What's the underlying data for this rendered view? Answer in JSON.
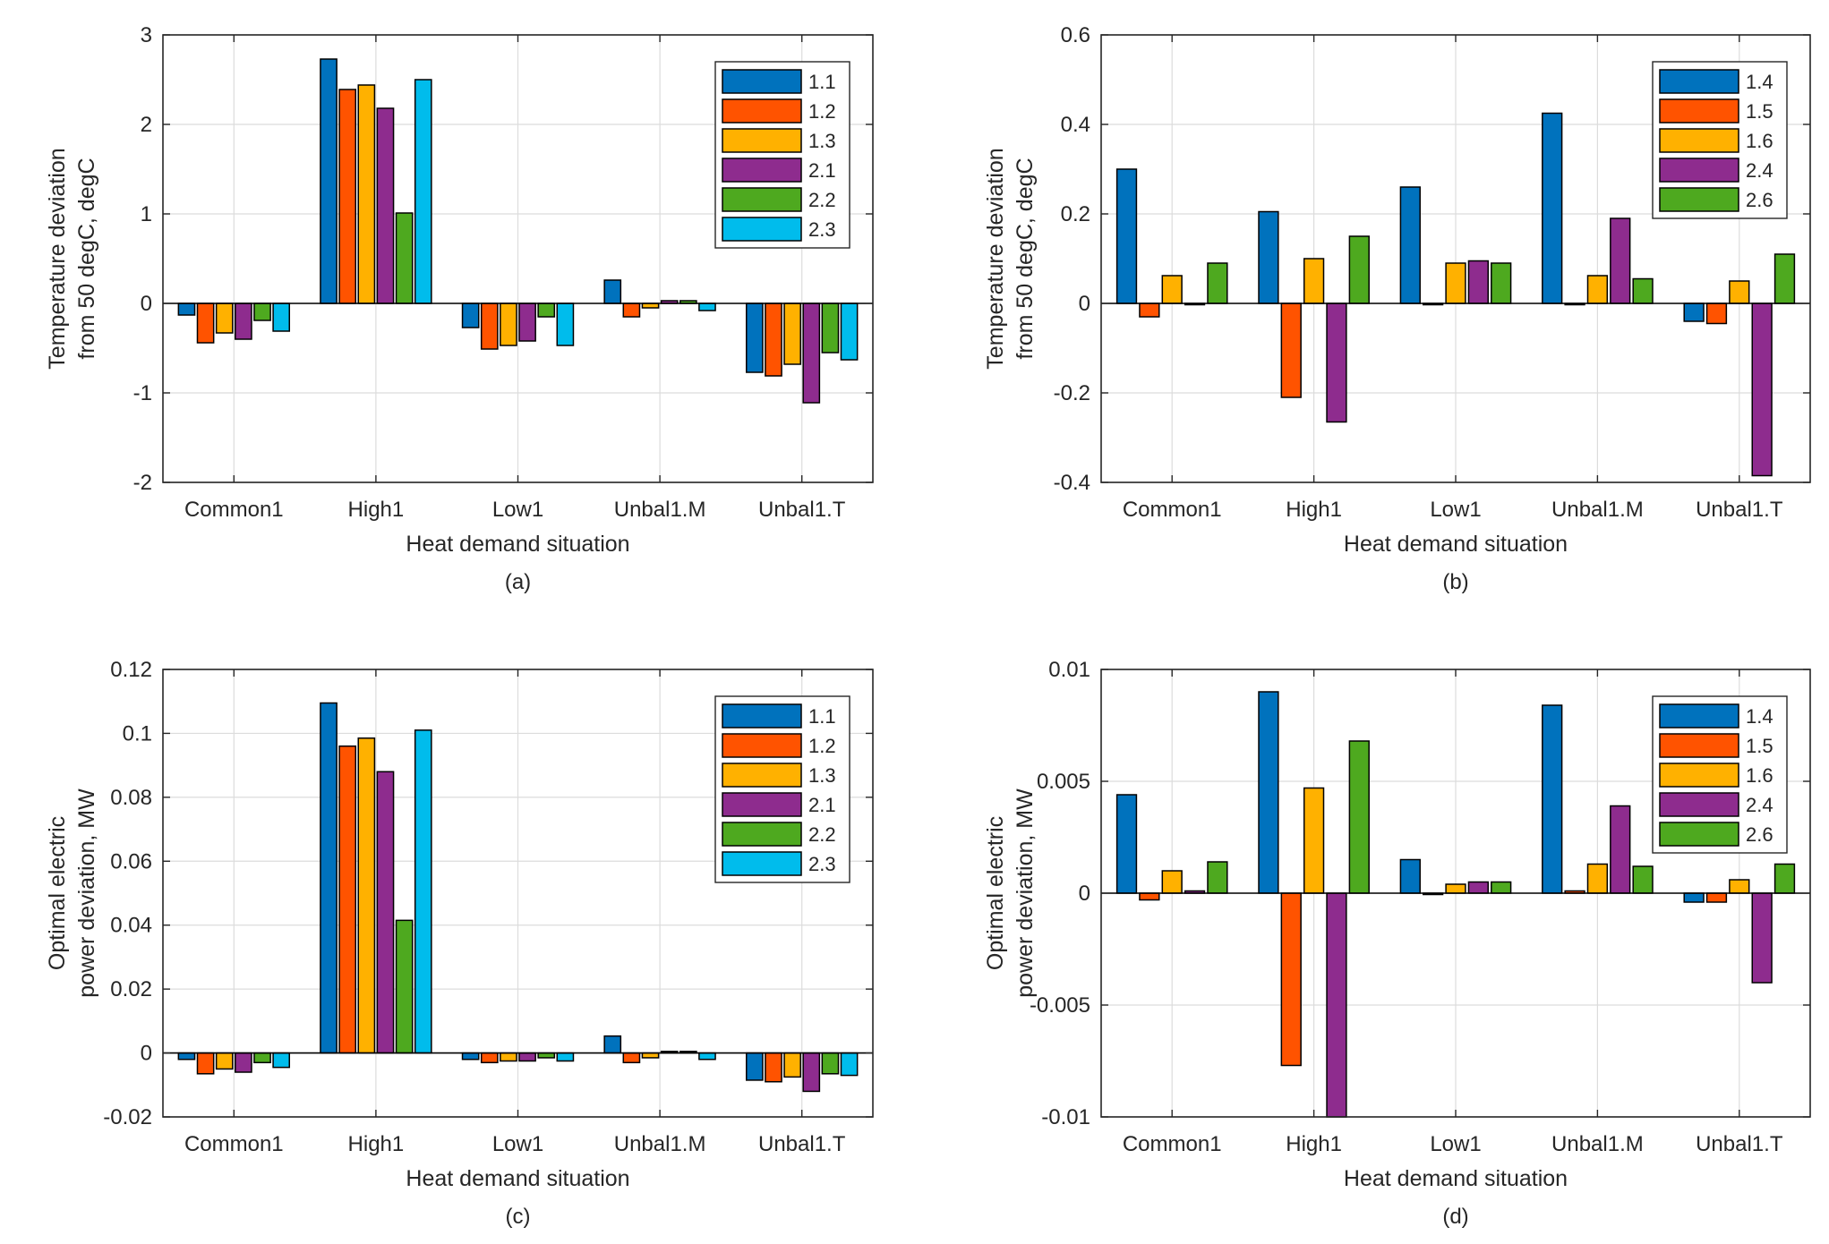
{
  "figure": {
    "xlabel": "Heat demand situation"
  },
  "palette": {
    "1.1": "#0072BD",
    "1.2": "#FF5300",
    "1.3": "#FFB100",
    "2.1": "#8E2C8E",
    "2.2": "#4EA91F",
    "2.3": "#00BCEC",
    "1.4": "#0072BD",
    "1.5": "#FF5300",
    "1.6": "#FFB100",
    "2.4": "#8E2C8E",
    "2.6": "#4EA91F"
  },
  "chart_data": [
    {
      "id": "a",
      "type": "bar",
      "subtitle": "(a)",
      "categories": [
        "Common1",
        "High1",
        "Low1",
        "Unbal1.M",
        "Unbal1.T"
      ],
      "xlabel": "Heat demand situation",
      "ylabel": [
        "Temperature deviation",
        "from 50 degC, degC"
      ],
      "ylim": [
        -2,
        3
      ],
      "yticks": [
        -2,
        -1,
        0,
        1,
        2,
        3
      ],
      "ytick_labels": [
        "-2",
        "-1",
        "0",
        "1",
        "2",
        "3"
      ],
      "grid": true,
      "legend_position": "top-right",
      "series": [
        {
          "name": "1.1",
          "values": [
            -0.13,
            2.73,
            -0.27,
            0.26,
            -0.77
          ]
        },
        {
          "name": "1.2",
          "values": [
            -0.44,
            2.39,
            -0.51,
            -0.15,
            -0.81
          ]
        },
        {
          "name": "1.3",
          "values": [
            -0.33,
            2.44,
            -0.47,
            -0.05,
            -0.68
          ]
        },
        {
          "name": "2.1",
          "values": [
            -0.4,
            2.18,
            -0.42,
            0.03,
            -1.11
          ]
        },
        {
          "name": "2.2",
          "values": [
            -0.19,
            1.01,
            -0.15,
            0.03,
            -0.55
          ]
        },
        {
          "name": "2.3",
          "values": [
            -0.31,
            2.5,
            -0.47,
            -0.08,
            -0.63
          ]
        }
      ]
    },
    {
      "id": "b",
      "type": "bar",
      "subtitle": "(b)",
      "categories": [
        "Common1",
        "High1",
        "Low1",
        "Unbal1.M",
        "Unbal1.T"
      ],
      "xlabel": "Heat demand situation",
      "ylabel": [
        "Temperature deviation",
        "from 50 degC, degC"
      ],
      "ylim": [
        -0.4,
        0.6
      ],
      "yticks": [
        -0.4,
        -0.2,
        0,
        0.2,
        0.4,
        0.6
      ],
      "ytick_labels": [
        "-0.4",
        "-0.2",
        "0",
        "0.2",
        "0.4",
        "0.6"
      ],
      "grid": true,
      "legend_position": "top-right",
      "series": [
        {
          "name": "1.4",
          "values": [
            0.3,
            0.205,
            0.26,
            0.425,
            -0.04
          ]
        },
        {
          "name": "1.5",
          "values": [
            -0.03,
            -0.21,
            0.0,
            -0.003,
            -0.045
          ]
        },
        {
          "name": "1.6",
          "values": [
            0.062,
            0.1,
            0.09,
            0.062,
            0.05
          ]
        },
        {
          "name": "2.4",
          "values": [
            0.0,
            -0.265,
            0.095,
            0.19,
            -0.385
          ]
        },
        {
          "name": "2.6",
          "values": [
            0.09,
            0.15,
            0.09,
            0.055,
            0.11
          ]
        }
      ]
    },
    {
      "id": "c",
      "type": "bar",
      "subtitle": "(c)",
      "categories": [
        "Common1",
        "High1",
        "Low1",
        "Unbal1.M",
        "Unbal1.T"
      ],
      "xlabel": "Heat demand situation",
      "ylabel": [
        "Optimal electric",
        "power deviation, MW"
      ],
      "ylim": [
        -0.02,
        0.12
      ],
      "yticks": [
        -0.02,
        0,
        0.02,
        0.04,
        0.06,
        0.08,
        0.1,
        0.12
      ],
      "ytick_labels": [
        "-0.02",
        "0",
        "0.02",
        "0.04",
        "0.06",
        "0.08",
        "0.1",
        "0.12"
      ],
      "grid": true,
      "legend_position": "top-right",
      "series": [
        {
          "name": "1.1",
          "values": [
            -0.002,
            0.1095,
            -0.002,
            0.0053,
            -0.0085
          ]
        },
        {
          "name": "1.2",
          "values": [
            -0.0065,
            0.096,
            -0.003,
            -0.003,
            -0.009
          ]
        },
        {
          "name": "1.3",
          "values": [
            -0.005,
            0.0985,
            -0.0025,
            -0.0015,
            -0.0075
          ]
        },
        {
          "name": "2.1",
          "values": [
            -0.006,
            0.088,
            -0.0025,
            0.0005,
            -0.012
          ]
        },
        {
          "name": "2.2",
          "values": [
            -0.003,
            0.0415,
            -0.0015,
            0.0005,
            -0.0065
          ]
        },
        {
          "name": "2.3",
          "values": [
            -0.0045,
            0.101,
            -0.0025,
            -0.002,
            -0.007
          ]
        }
      ]
    },
    {
      "id": "d",
      "type": "bar",
      "subtitle": "(d)",
      "categories": [
        "Common1",
        "High1",
        "Low1",
        "Unbal1.M",
        "Unbal1.T"
      ],
      "xlabel": "Heat demand situation",
      "ylabel": [
        "Optimal electric",
        "power deviation, MW"
      ],
      "ylim": [
        -0.01,
        0.01
      ],
      "yticks": [
        -0.01,
        -0.005,
        0,
        0.005,
        0.01
      ],
      "ytick_labels": [
        "-0.01",
        "-0.005",
        "0",
        "0.005",
        "0.01"
      ],
      "grid": true,
      "legend_position": "top-right",
      "series": [
        {
          "name": "1.4",
          "values": [
            0.0044,
            0.009,
            0.0015,
            0.0084,
            -0.0004
          ]
        },
        {
          "name": "1.5",
          "values": [
            -0.0003,
            -0.0077,
            0.0,
            0.0001,
            -0.0004
          ]
        },
        {
          "name": "1.6",
          "values": [
            0.001,
            0.0047,
            0.0004,
            0.0013,
            0.0006
          ]
        },
        {
          "name": "2.4",
          "values": [
            0.0001,
            -0.01,
            0.0005,
            0.0039,
            -0.004
          ]
        },
        {
          "name": "2.6",
          "values": [
            0.0014,
            0.0068,
            0.0005,
            0.0012,
            0.0013
          ]
        }
      ]
    }
  ]
}
